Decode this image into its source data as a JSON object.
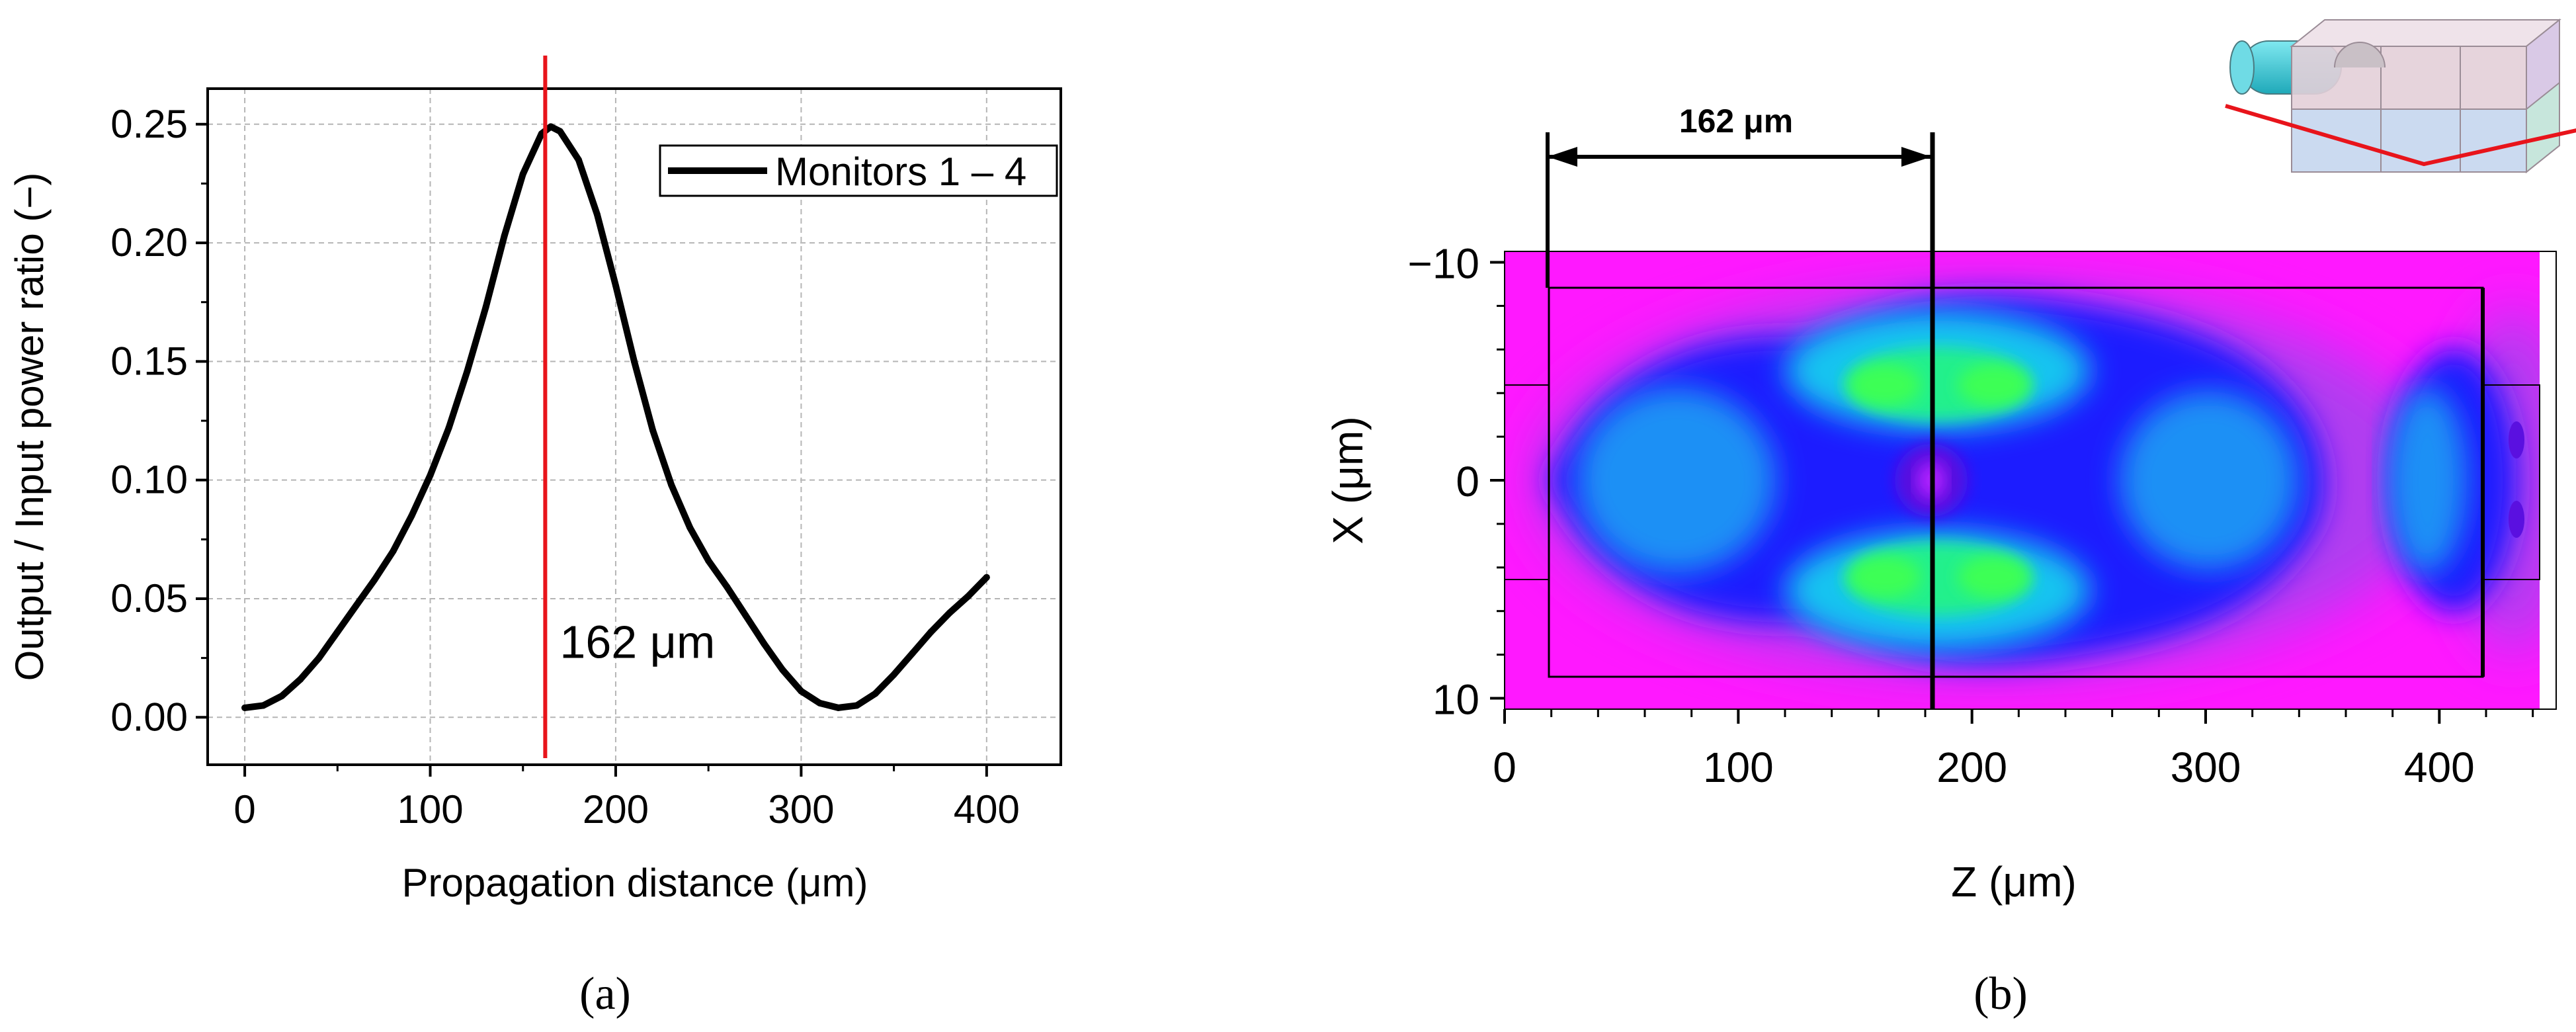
{
  "chart_data": [
    {
      "type": "line",
      "panel_label": "(a)",
      "xlabel": "Propagation distance (μm)",
      "ylabel": "Output / Input power ratio (−)",
      "xlim": [
        -20,
        440
      ],
      "ylim": [
        -0.02,
        0.265
      ],
      "xticks": [
        0,
        100,
        200,
        300,
        400
      ],
      "xtick_labels": [
        "0",
        "100",
        "200",
        "300",
        "400"
      ],
      "yticks": [
        0.0,
        0.05,
        0.1,
        0.15,
        0.2,
        0.25
      ],
      "ytick_labels": [
        "0.00",
        "0.05",
        "0.10",
        "0.15",
        "0.20",
        "0.25"
      ],
      "grid": true,
      "legend_position": "top-right",
      "series": [
        {
          "name": "Monitors 1 – 4",
          "color": "#000000",
          "x": [
            0,
            10,
            20,
            30,
            40,
            50,
            60,
            70,
            80,
            90,
            100,
            110,
            120,
            130,
            140,
            150,
            160,
            165,
            170,
            180,
            190,
            200,
            210,
            220,
            230,
            240,
            250,
            260,
            270,
            280,
            290,
            300,
            310,
            320,
            330,
            340,
            350,
            360,
            370,
            380,
            390,
            400
          ],
          "y": [
            0.004,
            0.005,
            0.009,
            0.016,
            0.025,
            0.036,
            0.047,
            0.058,
            0.07,
            0.085,
            0.102,
            0.122,
            0.146,
            0.173,
            0.203,
            0.229,
            0.246,
            0.249,
            0.247,
            0.235,
            0.212,
            0.182,
            0.15,
            0.121,
            0.098,
            0.08,
            0.066,
            0.055,
            0.043,
            0.031,
            0.02,
            0.011,
            0.006,
            0.004,
            0.005,
            0.01,
            0.018,
            0.027,
            0.036,
            0.044,
            0.051,
            0.059
          ]
        }
      ],
      "annotations": [
        {
          "type": "vline",
          "x": 162,
          "color": "#e8141b",
          "label": "162 μm"
        }
      ]
    },
    {
      "type": "heatmap",
      "panel_label": "(b)",
      "xlabel": "Z (μm)",
      "ylabel": "X (μm)",
      "xlim": [
        0,
        450
      ],
      "ylim": [
        -10.5,
        10.5
      ],
      "xticks": [
        0,
        100,
        200,
        300,
        400
      ],
      "xtick_labels": [
        "0",
        "100",
        "200",
        "300",
        "400"
      ],
      "yticks": [
        -10,
        0,
        10
      ],
      "ytick_labels": [
        "−10",
        "0",
        "10"
      ],
      "colormap": [
        "#ff00ff",
        "#0000ff",
        "#00e5ff",
        "#00ff66"
      ],
      "annotations": [
        {
          "type": "dimension",
          "from": 20,
          "to": 185,
          "label": "162 μm"
        },
        {
          "type": "vline",
          "x": 185,
          "color": "#000000"
        }
      ],
      "inset": "3d-device-sketch"
    }
  ]
}
